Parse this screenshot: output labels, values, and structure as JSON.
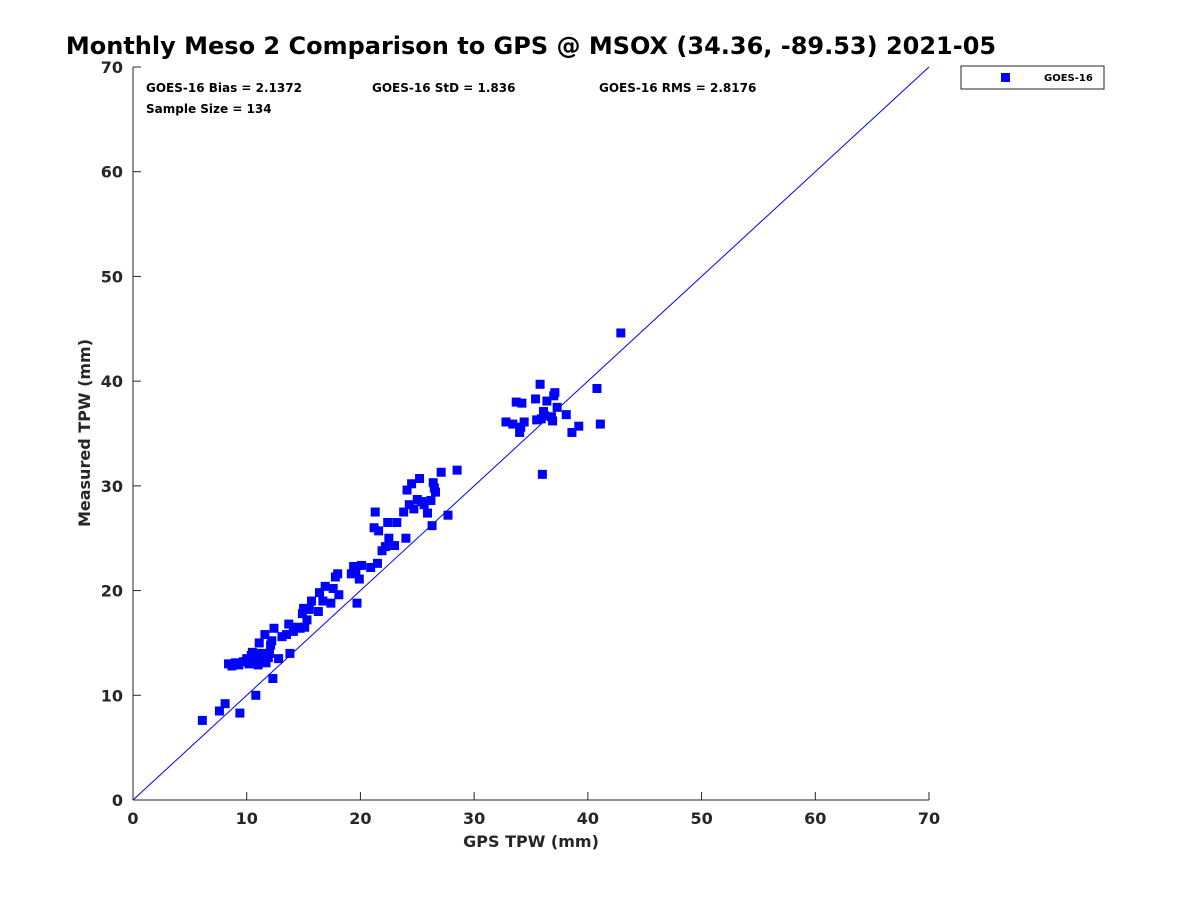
{
  "chart_data": {
    "type": "scatter",
    "title": "Monthly Meso 2 Comparison to GPS @ MSOX (34.36, -89.53) 2021-05",
    "xlabel": "GPS TPW (mm)",
    "ylabel": "Measured TPW (mm)",
    "xlim": [
      0,
      70
    ],
    "ylim": [
      0,
      70
    ],
    "xticks": [
      0,
      10,
      20,
      30,
      40,
      50,
      60,
      70
    ],
    "yticks": [
      0,
      10,
      20,
      30,
      40,
      50,
      60,
      70
    ],
    "grid": false,
    "legend": {
      "position": "outside top-right",
      "entries": [
        "GOES-16"
      ]
    },
    "stats": {
      "bias": "GOES-16 Bias = 2.1372",
      "std": "GOES-16 StD = 1.836",
      "rms": "GOES-16 RMS = 2.8176",
      "sample_size": "Sample Size = 134"
    },
    "reference_line": {
      "from": [
        0,
        0
      ],
      "to": [
        70,
        70
      ],
      "color": "#0000ff"
    },
    "series": [
      {
        "name": "GOES-16",
        "color": "#0000ff",
        "marker": "square",
        "points": [
          [
            6.1,
            7.6
          ],
          [
            7.6,
            8.5
          ],
          [
            8.1,
            9.2
          ],
          [
            9.4,
            8.3
          ],
          [
            10.8,
            10.0
          ],
          [
            12.3,
            11.6
          ],
          [
            8.4,
            13.0
          ],
          [
            8.7,
            12.8
          ],
          [
            9.0,
            13.1
          ],
          [
            9.3,
            12.9
          ],
          [
            9.7,
            13.2
          ],
          [
            10.0,
            13.5
          ],
          [
            10.2,
            13.0
          ],
          [
            10.4,
            13.8
          ],
          [
            10.5,
            14.1
          ],
          [
            10.7,
            13.3
          ],
          [
            10.9,
            14.0
          ],
          [
            11.0,
            12.9
          ],
          [
            11.1,
            15.0
          ],
          [
            11.3,
            13.4
          ],
          [
            11.5,
            14.0
          ],
          [
            11.6,
            15.8
          ],
          [
            11.7,
            13.1
          ],
          [
            11.9,
            13.6
          ],
          [
            12.0,
            14.0
          ],
          [
            12.1,
            14.8
          ],
          [
            12.2,
            15.2
          ],
          [
            12.4,
            16.4
          ],
          [
            12.8,
            13.5
          ],
          [
            13.1,
            15.6
          ],
          [
            13.5,
            15.8
          ],
          [
            13.7,
            16.8
          ],
          [
            13.8,
            14.0
          ],
          [
            14.1,
            16.1
          ],
          [
            14.4,
            16.5
          ],
          [
            14.7,
            16.4
          ],
          [
            14.9,
            17.8
          ],
          [
            15.0,
            18.3
          ],
          [
            15.1,
            16.5
          ],
          [
            15.3,
            17.2
          ],
          [
            15.5,
            18.2
          ],
          [
            15.7,
            19.0
          ],
          [
            16.3,
            18.0
          ],
          [
            16.4,
            19.8
          ],
          [
            16.7,
            19.0
          ],
          [
            16.9,
            20.4
          ],
          [
            17.4,
            18.8
          ],
          [
            17.6,
            20.2
          ],
          [
            17.8,
            21.3
          ],
          [
            18.0,
            21.6
          ],
          [
            18.1,
            19.6
          ],
          [
            19.2,
            21.6
          ],
          [
            19.4,
            22.3
          ],
          [
            19.6,
            21.9
          ],
          [
            19.7,
            18.8
          ],
          [
            19.9,
            21.1
          ],
          [
            20.1,
            22.4
          ],
          [
            20.9,
            22.2
          ],
          [
            21.2,
            26.0
          ],
          [
            21.3,
            27.5
          ],
          [
            21.5,
            22.6
          ],
          [
            21.6,
            25.7
          ],
          [
            21.9,
            23.8
          ],
          [
            22.2,
            24.2
          ],
          [
            22.4,
            26.5
          ],
          [
            22.5,
            25.0
          ],
          [
            23.0,
            24.3
          ],
          [
            23.2,
            26.5
          ],
          [
            23.8,
            27.5
          ],
          [
            24.0,
            25.0
          ],
          [
            24.1,
            29.6
          ],
          [
            24.3,
            28.2
          ],
          [
            24.5,
            30.2
          ],
          [
            24.7,
            27.8
          ],
          [
            25.0,
            28.7
          ],
          [
            25.2,
            30.7
          ],
          [
            25.4,
            28.5
          ],
          [
            25.6,
            28.2
          ],
          [
            25.9,
            27.4
          ],
          [
            26.2,
            28.6
          ],
          [
            26.3,
            26.2
          ],
          [
            26.4,
            30.3
          ],
          [
            26.5,
            29.8
          ],
          [
            26.6,
            29.4
          ],
          [
            27.1,
            31.3
          ],
          [
            27.7,
            27.2
          ],
          [
            28.5,
            31.5
          ],
          [
            32.8,
            36.1
          ],
          [
            33.4,
            35.9
          ],
          [
            33.7,
            38.0
          ],
          [
            34.0,
            35.1
          ],
          [
            34.1,
            35.6
          ],
          [
            34.2,
            37.9
          ],
          [
            34.4,
            36.1
          ],
          [
            35.4,
            38.3
          ],
          [
            35.5,
            36.3
          ],
          [
            35.8,
            39.7
          ],
          [
            35.9,
            36.4
          ],
          [
            36.0,
            31.1
          ],
          [
            36.1,
            37.1
          ],
          [
            36.2,
            36.7
          ],
          [
            36.4,
            38.1
          ],
          [
            36.8,
            36.6
          ],
          [
            36.9,
            36.2
          ],
          [
            37.0,
            38.6
          ],
          [
            37.1,
            38.9
          ],
          [
            37.3,
            37.5
          ],
          [
            38.1,
            36.8
          ],
          [
            38.6,
            35.1
          ],
          [
            39.2,
            35.7
          ],
          [
            40.8,
            39.3
          ],
          [
            41.1,
            35.9
          ],
          [
            42.9,
            44.6
          ]
        ]
      }
    ]
  }
}
